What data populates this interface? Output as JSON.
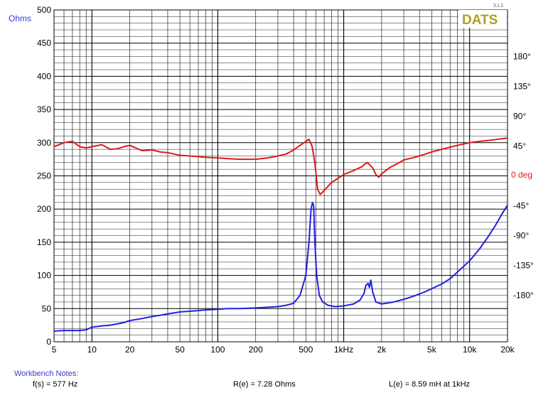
{
  "chart_data": {
    "type": "line",
    "title": "",
    "xlabel": "",
    "x_scale": "log",
    "xlim": [
      5,
      20000
    ],
    "ylim_left": [
      0,
      500
    ],
    "ylim_right": [
      -250,
      250
    ],
    "left_unit_label": "Ohms",
    "right_unit_label": "0 deg",
    "x_ticks": [
      {
        "value": 5,
        "label": "5"
      },
      {
        "value": 10,
        "label": "10"
      },
      {
        "value": 20,
        "label": "20"
      },
      {
        "value": 50,
        "label": "50"
      },
      {
        "value": 100,
        "label": "100"
      },
      {
        "value": 200,
        "label": "200"
      },
      {
        "value": 500,
        "label": "500"
      },
      {
        "value": 1000,
        "label": "1kHz"
      },
      {
        "value": 2000,
        "label": "2k"
      },
      {
        "value": 5000,
        "label": "5k"
      },
      {
        "value": 10000,
        "label": "10k"
      },
      {
        "value": 20000,
        "label": "20k"
      }
    ],
    "left_ticks": [
      "0",
      "50",
      "100",
      "150",
      "200",
      "250",
      "300",
      "350",
      "400",
      "450",
      "500"
    ],
    "right_ticks": [
      {
        "value": 180,
        "label": "180°"
      },
      {
        "value": 135,
        "label": "135°"
      },
      {
        "value": 90,
        "label": "90°"
      },
      {
        "value": 45,
        "label": "45°"
      },
      {
        "value": -45,
        "label": "-45°"
      },
      {
        "value": -90,
        "label": "-90°"
      },
      {
        "value": -135,
        "label": "-135°"
      },
      {
        "value": -180,
        "label": "-180°"
      }
    ],
    "grid": true,
    "series": [
      {
        "name": "",
        "axis": "left",
        "color": "#2020e0",
        "x": [
          5,
          6,
          7,
          8,
          9,
          10,
          12,
          14,
          16,
          18,
          20,
          25,
          30,
          35,
          40,
          50,
          60,
          70,
          80,
          100,
          120,
          150,
          200,
          250,
          300,
          350,
          400,
          450,
          500,
          530,
          550,
          565,
          577,
          590,
          610,
          640,
          680,
          750,
          850,
          1000,
          1200,
          1350,
          1450,
          1500,
          1560,
          1600,
          1640,
          1700,
          1800,
          2000,
          2500,
          3000,
          3500,
          4000,
          4500,
          5000,
          6000,
          7000,
          8000,
          10000,
          12000,
          14000,
          16000,
          18000,
          20000
        ],
        "y": [
          16,
          17,
          17,
          17,
          18,
          22,
          24,
          25,
          27,
          29,
          32,
          35,
          38,
          40,
          42,
          45,
          46,
          47,
          48,
          49,
          50,
          50,
          51,
          52,
          53,
          55,
          58,
          70,
          100,
          150,
          200,
          210,
          205,
          150,
          100,
          70,
          60,
          55,
          53,
          54,
          57,
          63,
          73,
          85,
          88,
          82,
          93,
          75,
          60,
          57,
          60,
          64,
          68,
          72,
          76,
          80,
          87,
          95,
          105,
          122,
          140,
          158,
          175,
          192,
          206
        ]
      },
      {
        "name": "",
        "axis": "right",
        "color": "#e01818",
        "x": [
          5,
          6,
          7,
          8,
          9,
          10,
          12,
          14,
          16,
          18,
          20,
          25,
          30,
          35,
          40,
          50,
          60,
          70,
          80,
          100,
          120,
          150,
          200,
          250,
          300,
          350,
          400,
          450,
          500,
          530,
          560,
          590,
          620,
          650,
          700,
          800,
          1000,
          1200,
          1400,
          1500,
          1550,
          1600,
          1700,
          1800,
          1900,
          2000,
          2300,
          2700,
          3000,
          3500,
          4000,
          5000,
          6000,
          8000,
          10000,
          12000,
          15000,
          20000
        ],
        "y": [
          44,
          50,
          52,
          44,
          42,
          44,
          47,
          40,
          41,
          44,
          46,
          38,
          39,
          36,
          35,
          31,
          30,
          29,
          28,
          27,
          26,
          25,
          25,
          27,
          30,
          33,
          39,
          46,
          52,
          55,
          45,
          20,
          -20,
          -28,
          -22,
          -10,
          2,
          8,
          14,
          19,
          20,
          17,
          12,
          2,
          -2,
          3,
          12,
          19,
          24,
          27,
          30,
          36,
          40,
          46,
          50,
          52,
          54,
          57
        ]
      }
    ]
  },
  "brand": {
    "logo_text": "DATS",
    "logo_color": "#b0a020",
    "version": "3.1.5"
  },
  "notes": {
    "title": "Workbench Notes:",
    "fs": "f(s) = 577 Hz",
    "re": "R(e) = 7.28 Ohms",
    "le": "L(e) = 8.59 mH at 1kHz"
  }
}
